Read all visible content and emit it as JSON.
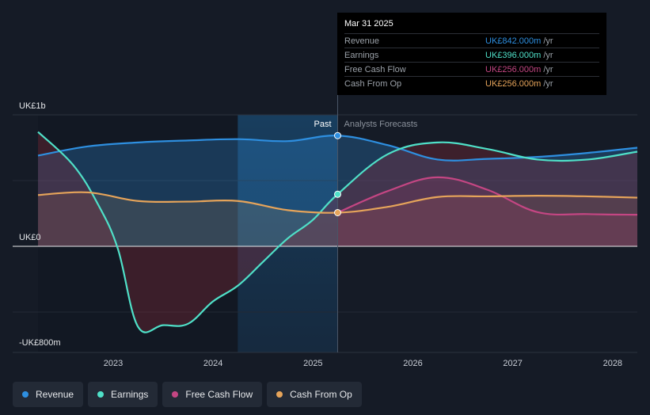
{
  "chart_data": {
    "type": "line",
    "y_axis_labels": {
      "top": "UK£1b",
      "zero": "UK£0",
      "bottom": "-UK£800m"
    },
    "ylim": [
      -800,
      1000
    ],
    "x_ticks": [
      2023,
      2024,
      2025,
      2026,
      2027,
      2028
    ],
    "past_label": "Past",
    "forecast_label": "Analysts Forecasts",
    "divider_x": 2025.25,
    "highlight_start_x": 2024.25,
    "series": [
      {
        "name": "Revenue",
        "color": "#2e8fe0",
        "points": [
          [
            2022.25,
            690
          ],
          [
            2022.75,
            760
          ],
          [
            2023.25,
            790
          ],
          [
            2023.75,
            805
          ],
          [
            2024.25,
            815
          ],
          [
            2024.75,
            800
          ],
          [
            2025.25,
            842
          ],
          [
            2025.75,
            770
          ],
          [
            2026.25,
            660
          ],
          [
            2026.75,
            665
          ],
          [
            2027.25,
            680
          ],
          [
            2027.75,
            710
          ],
          [
            2028.25,
            750
          ]
        ]
      },
      {
        "name": "Earnings",
        "color": "#4fe0c8",
        "points": [
          [
            2022.25,
            870
          ],
          [
            2022.6,
            620
          ],
          [
            2022.85,
            320
          ],
          [
            2023.05,
            -20
          ],
          [
            2023.25,
            -610
          ],
          [
            2023.5,
            -600
          ],
          [
            2023.75,
            -590
          ],
          [
            2024.0,
            -420
          ],
          [
            2024.25,
            -300
          ],
          [
            2024.5,
            -120
          ],
          [
            2024.75,
            60
          ],
          [
            2025.0,
            200
          ],
          [
            2025.25,
            396
          ],
          [
            2025.75,
            700
          ],
          [
            2026.25,
            790
          ],
          [
            2026.75,
            740
          ],
          [
            2027.25,
            660
          ],
          [
            2027.75,
            660
          ],
          [
            2028.25,
            720
          ]
        ]
      },
      {
        "name": "Free Cash Flow",
        "color": "#c44683",
        "points": [
          [
            2025.25,
            256
          ],
          [
            2025.75,
            420
          ],
          [
            2026.25,
            525
          ],
          [
            2026.75,
            430
          ],
          [
            2027.25,
            260
          ],
          [
            2027.75,
            245
          ],
          [
            2028.25,
            240
          ]
        ]
      },
      {
        "name": "Cash From Op",
        "color": "#e6a45a",
        "points": [
          [
            2022.25,
            390
          ],
          [
            2022.75,
            410
          ],
          [
            2023.25,
            345
          ],
          [
            2023.75,
            340
          ],
          [
            2024.25,
            345
          ],
          [
            2024.75,
            275
          ],
          [
            2025.25,
            256
          ],
          [
            2025.75,
            300
          ],
          [
            2026.25,
            375
          ],
          [
            2026.75,
            380
          ],
          [
            2027.25,
            385
          ],
          [
            2027.75,
            380
          ],
          [
            2028.25,
            370
          ]
        ]
      }
    ]
  },
  "tooltip": {
    "date": "Mar 31 2025",
    "rows": [
      {
        "label": "Revenue",
        "value": "UK£842.000m",
        "unit": "/yr",
        "color": "#2e8fe0"
      },
      {
        "label": "Earnings",
        "value": "UK£396.000m",
        "unit": "/yr",
        "color": "#4fe0c8"
      },
      {
        "label": "Free Cash Flow",
        "value": "UK£256.000m",
        "unit": "/yr",
        "color": "#c44683"
      },
      {
        "label": "Cash From Op",
        "value": "UK£256.000m",
        "unit": "/yr",
        "color": "#e6a45a"
      }
    ]
  },
  "legend": [
    {
      "label": "Revenue",
      "color": "#2e8fe0"
    },
    {
      "label": "Earnings",
      "color": "#4fe0c8"
    },
    {
      "label": "Free Cash Flow",
      "color": "#c44683"
    },
    {
      "label": "Cash From Op",
      "color": "#e6a45a"
    }
  ]
}
